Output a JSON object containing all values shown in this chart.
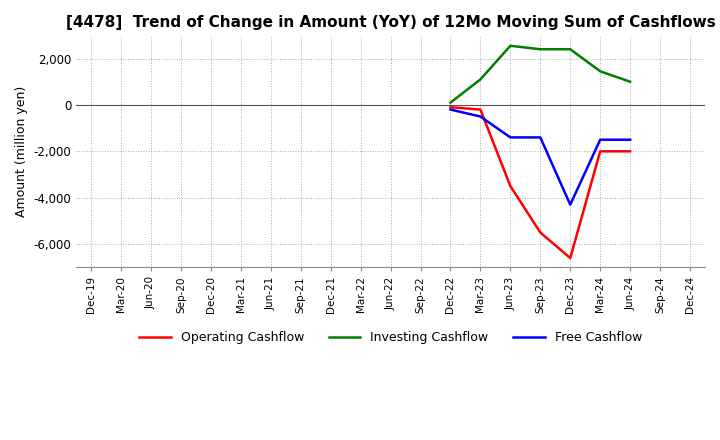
{
  "title": "[4478]  Trend of Change in Amount (YoY) of 12Mo Moving Sum of Cashflows",
  "ylabel": "Amount (million yen)",
  "ylim": [
    -7000,
    3000
  ],
  "yticks": [
    2000,
    0,
    -2000,
    -4000,
    -6000
  ],
  "background_color": "#ffffff",
  "grid_color": "#aaaaaa",
  "x_labels": [
    "Dec-19",
    "Mar-20",
    "Jun-20",
    "Sep-20",
    "Dec-20",
    "Mar-21",
    "Jun-21",
    "Sep-21",
    "Dec-21",
    "Mar-22",
    "Jun-22",
    "Sep-22",
    "Dec-22",
    "Mar-23",
    "Jun-23",
    "Sep-23",
    "Dec-23",
    "Mar-24",
    "Jun-24",
    "Sep-24",
    "Dec-24"
  ],
  "operating_cashflow": [
    null,
    null,
    null,
    null,
    null,
    null,
    null,
    null,
    null,
    null,
    null,
    null,
    -100,
    -200,
    -3500,
    -5500,
    -6600,
    -2000,
    -2000,
    null,
    null
  ],
  "investing_cashflow": [
    null,
    null,
    null,
    null,
    null,
    null,
    null,
    null,
    null,
    null,
    null,
    null,
    100,
    1100,
    2550,
    2400,
    2400,
    1450,
    1000,
    null,
    null
  ],
  "free_cashflow": [
    null,
    null,
    null,
    null,
    null,
    null,
    null,
    null,
    null,
    null,
    null,
    null,
    -200,
    -500,
    -1400,
    -1400,
    -4300,
    -1500,
    -1500,
    null,
    null
  ],
  "op_color": "#ff0000",
  "inv_color": "#008000",
  "free_color": "#0000ff",
  "line_width": 1.8,
  "legend_labels": [
    "Operating Cashflow",
    "Investing Cashflow",
    "Free Cashflow"
  ]
}
